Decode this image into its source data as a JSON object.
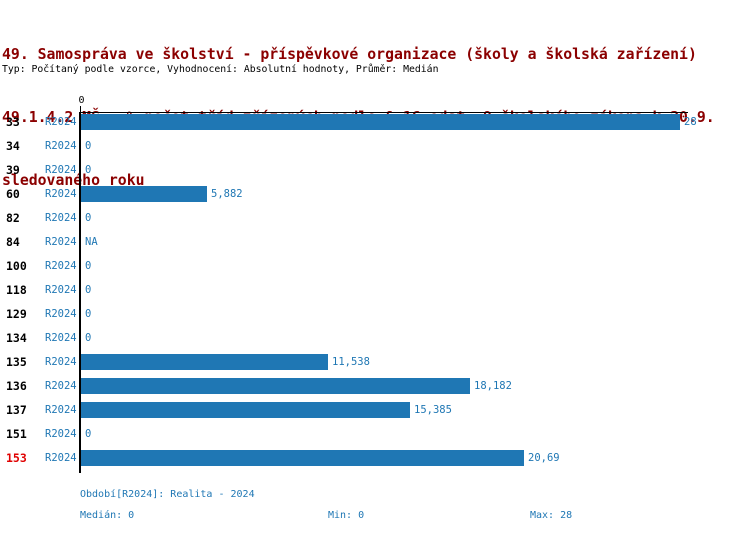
{
  "header": {
    "title_line1": "49. Samospráva ve školství - příspěvkové organizace (školy a školská zařízení)",
    "title_line2": "49.1.4.2 MŠ - % počet tříd zřízených podle § 16 odst. 9 školského zákona k 30.9.",
    "title_line3": "sledovaného roku",
    "subtitle": "Typ: Počítaný podle vzorce, Vyhodnocení: Absolutní hodnoty, Průměr: Medián"
  },
  "chart_data": {
    "type": "bar",
    "orientation": "horizontal",
    "title": "49.1.4.2 MŠ - % počet tříd zřízených podle § 16 odst. 9 školského zákona k 30.9. sledovaného roku",
    "categories": [
      "33",
      "34",
      "39",
      "60",
      "82",
      "84",
      "100",
      "118",
      "129",
      "134",
      "135",
      "136",
      "137",
      "151",
      "153"
    ],
    "series": [
      {
        "name": "R2024",
        "values": [
          28,
          0,
          0,
          5.882,
          0,
          null,
          0,
          0,
          0,
          0,
          11.538,
          18.182,
          15.385,
          0,
          20.69
        ]
      }
    ],
    "value_labels": [
      "28",
      "0",
      "0",
      "5,882",
      "0",
      "NA",
      "0",
      "0",
      "0",
      "0",
      "11,538",
      "18,182",
      "15,385",
      "0",
      "20,69"
    ],
    "row_series_label": "R2024",
    "axis_tick_label": "0",
    "xlim": [
      0,
      28
    ],
    "grid": false,
    "legend_position": "none",
    "highlighted_category": "153"
  },
  "footer": {
    "period": "Období[R2024]: Realita - 2024",
    "median": "Medián: 0",
    "min": "Min: 0",
    "max": "Max: 28"
  },
  "colors": {
    "title": "#8B0000",
    "subtitle": "#000000",
    "bar": "#1F77B4",
    "blue_text": "#1F77B4",
    "highlight": "#E00000",
    "axis": "#000000"
  }
}
